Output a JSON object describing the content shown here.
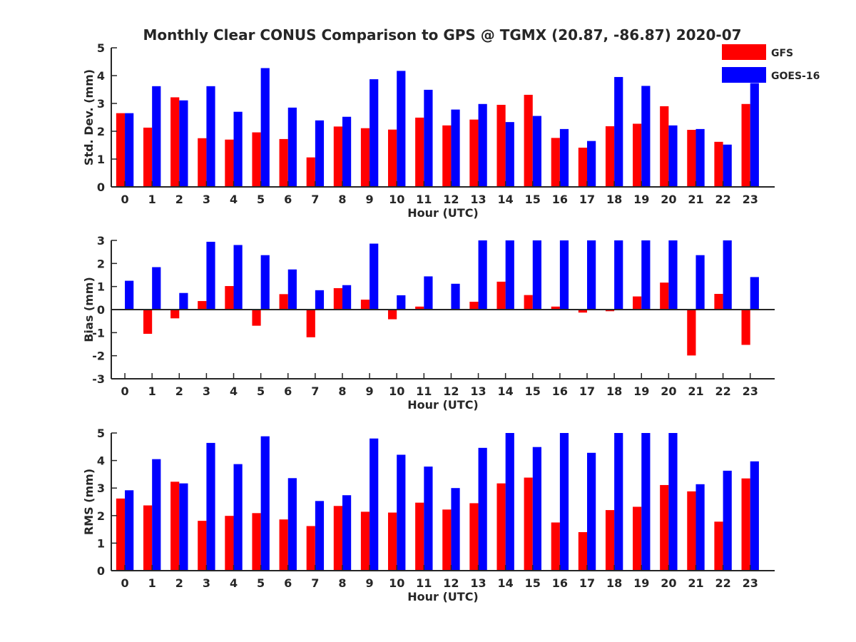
{
  "colors": {
    "gfs": "#ff0000",
    "goes": "#0000ff",
    "axis": "#262626",
    "background": "#ffffff"
  },
  "title": "Monthly Clear CONUS Comparison to GPS @ TGMX (20.87, -86.87) 2020-07",
  "legend": {
    "entries": [
      "GFS",
      "GOES-16"
    ],
    "location": "top-right"
  },
  "chart_data": [
    {
      "type": "bar",
      "ylabel": "Std. Dev. (mm)",
      "xlabel": "Hour (UTC)",
      "ylim": [
        0,
        5
      ],
      "yticks": [
        "0",
        "1",
        "2",
        "3",
        "4",
        "5"
      ],
      "categories": [
        "0",
        "1",
        "2",
        "3",
        "4",
        "5",
        "6",
        "7",
        "8",
        "9",
        "10",
        "11",
        "12",
        "13",
        "14",
        "15",
        "16",
        "17",
        "18",
        "19",
        "20",
        "21",
        "22",
        "23"
      ],
      "series": [
        {
          "name": "GFS",
          "values": [
            2.65,
            2.13,
            3.22,
            1.75,
            1.7,
            1.96,
            1.72,
            1.06,
            2.17,
            2.11,
            2.06,
            2.49,
            2.21,
            2.42,
            2.95,
            3.31,
            1.76,
            1.41,
            2.18,
            2.27,
            2.9,
            2.05,
            1.62,
            2.98
          ]
        },
        {
          "name": "GOES-16",
          "values": [
            2.65,
            3.62,
            3.11,
            3.62,
            2.7,
            4.27,
            2.85,
            2.39,
            2.52,
            3.87,
            4.17,
            3.49,
            2.78,
            2.98,
            2.33,
            2.55,
            2.08,
            1.65,
            3.95,
            3.63,
            2.21,
            2.08,
            1.52,
            3.73
          ]
        }
      ]
    },
    {
      "type": "bar",
      "ylabel": "Bias (mm)",
      "xlabel": "Hour (UTC)",
      "ylim": [
        -3,
        3
      ],
      "yticks": [
        "-3",
        "-2",
        "-1",
        "0",
        "1",
        "2",
        "3"
      ],
      "categories": [
        "0",
        "1",
        "2",
        "3",
        "4",
        "5",
        "6",
        "7",
        "8",
        "9",
        "10",
        "11",
        "12",
        "13",
        "14",
        "15",
        "16",
        "17",
        "18",
        "19",
        "20",
        "21",
        "22",
        "23"
      ],
      "series": [
        {
          "name": "GFS",
          "values": [
            0.0,
            -1.05,
            -0.38,
            0.37,
            1.02,
            -0.7,
            0.67,
            -1.2,
            0.93,
            0.43,
            -0.42,
            0.13,
            -0.03,
            0.34,
            1.21,
            0.63,
            0.13,
            -0.13,
            -0.07,
            0.57,
            1.17,
            -1.99,
            0.68,
            -1.53
          ]
        },
        {
          "name": "GOES-16",
          "values": [
            1.25,
            1.84,
            0.72,
            2.94,
            2.8,
            2.36,
            1.74,
            0.84,
            1.06,
            2.86,
            0.62,
            1.44,
            1.12,
            3.0,
            3.0,
            3.0,
            3.0,
            3.0,
            3.0,
            3.0,
            3.0,
            2.36,
            3.0,
            1.41
          ]
        }
      ]
    },
    {
      "type": "bar",
      "ylabel": "RMS (mm)",
      "xlabel": "Hour (UTC)",
      "ylim": [
        0,
        5
      ],
      "yticks": [
        "0",
        "1",
        "2",
        "3",
        "4",
        "5"
      ],
      "categories": [
        "0",
        "1",
        "2",
        "3",
        "4",
        "5",
        "6",
        "7",
        "8",
        "9",
        "10",
        "11",
        "12",
        "13",
        "14",
        "15",
        "16",
        "17",
        "18",
        "19",
        "20",
        "21",
        "22",
        "23"
      ],
      "series": [
        {
          "name": "GFS",
          "values": [
            2.62,
            2.37,
            3.23,
            1.81,
            1.99,
            2.09,
            1.86,
            1.62,
            2.35,
            2.14,
            2.11,
            2.47,
            2.22,
            2.45,
            3.17,
            3.38,
            1.75,
            1.4,
            2.2,
            2.32,
            3.11,
            2.88,
            1.78,
            3.35
          ]
        },
        {
          "name": "GOES-16",
          "values": [
            2.92,
            4.05,
            3.17,
            4.64,
            3.87,
            4.88,
            3.36,
            2.53,
            2.74,
            4.8,
            4.21,
            3.78,
            3.0,
            4.46,
            5.0,
            4.49,
            5.0,
            4.28,
            5.0,
            5.0,
            5.0,
            3.14,
            3.63,
            3.97
          ]
        }
      ]
    }
  ]
}
